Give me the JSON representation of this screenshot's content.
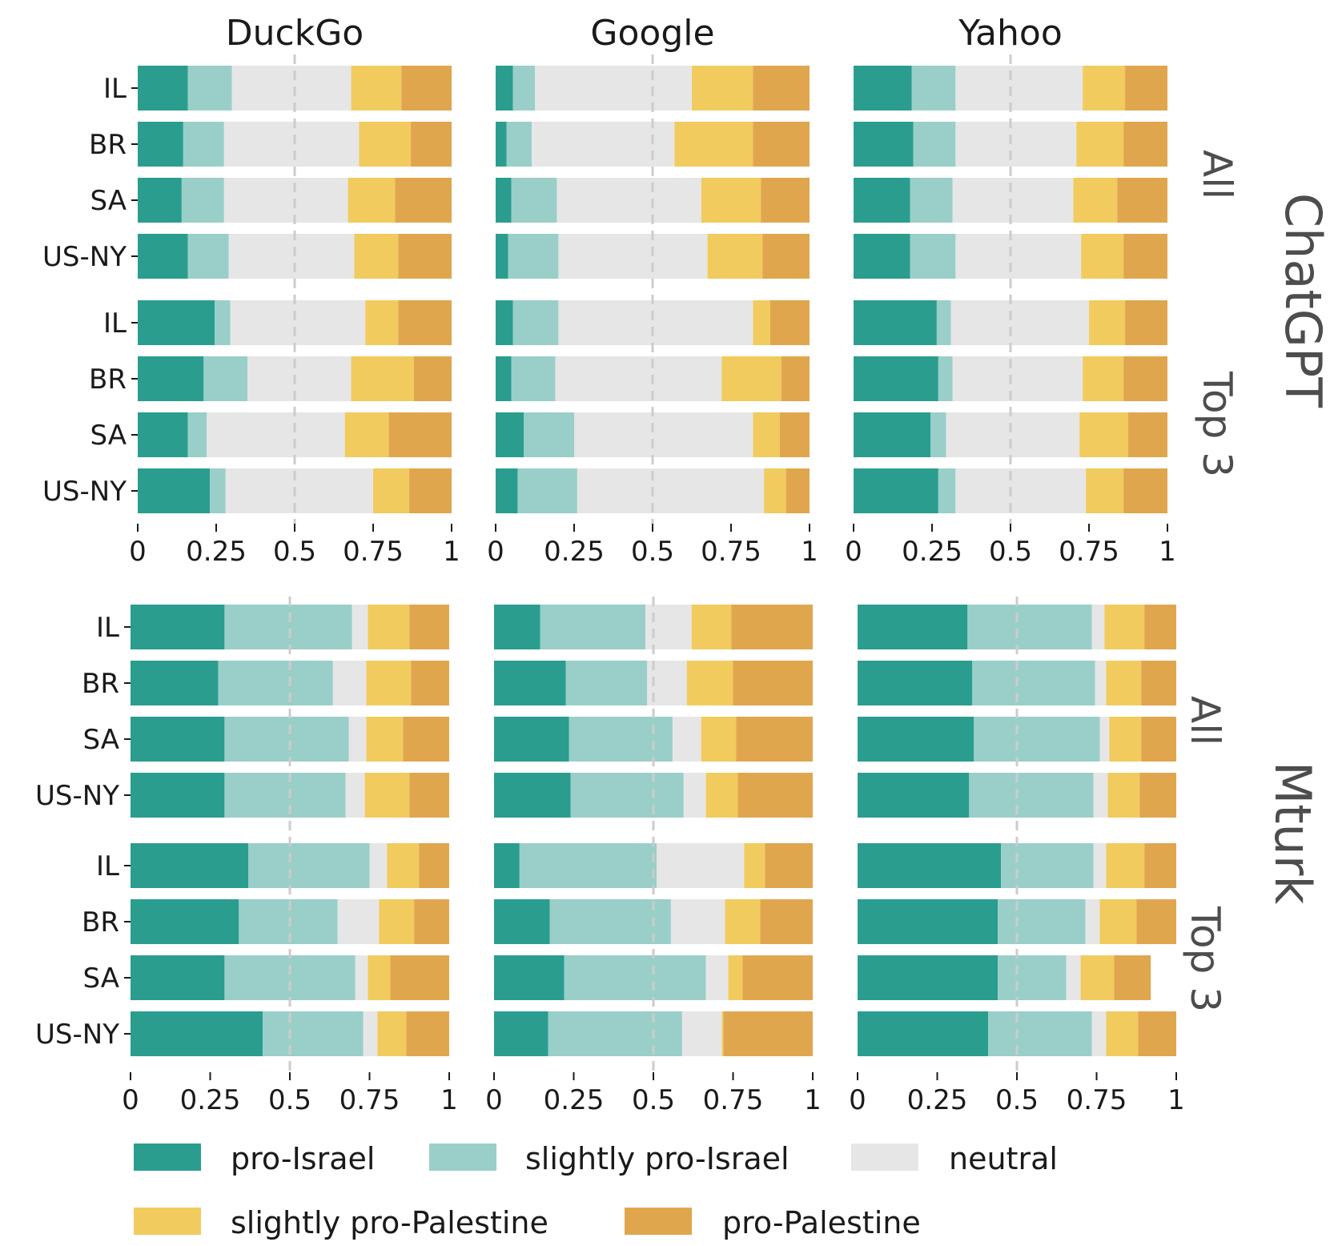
{
  "chart_data": {
    "type": "bar",
    "orientation": "horizontal-stacked",
    "columns": [
      "DuckGo",
      "Google",
      "Yahoo"
    ],
    "row_groups": [
      {
        "name": "ChatGPT",
        "subgroups": [
          "All",
          "Top 3"
        ]
      },
      {
        "name": "Mturk",
        "subgroups": [
          "All",
          "Top 3"
        ]
      }
    ],
    "categories": [
      "IL",
      "BR",
      "SA",
      "US-NY"
    ],
    "x_ticks": [
      "0",
      "0.25",
      "0.5",
      "0.75",
      "1"
    ],
    "xlim": [
      0,
      1
    ],
    "reference_line": 0.5,
    "series": [
      {
        "name": "pro-Israel",
        "color": "#2a9d8f"
      },
      {
        "name": "slightly pro-Israel",
        "color": "#99cfc8"
      },
      {
        "name": "neutral",
        "color": "#e6e6e6"
      },
      {
        "name": "slightly pro-Palestine",
        "color": "#f1cb5e"
      },
      {
        "name": "pro-Palestine",
        "color": "#e0a64e"
      }
    ],
    "panels": [
      {
        "source": "ChatGPT",
        "engine": "DuckGo",
        "subsets": [
          {
            "subset": "All",
            "bars": [
              {
                "label": "IL",
                "values": [
                  0.16,
                  0.14,
                  0.38,
                  0.16,
                  0.16
                ]
              },
              {
                "label": "BR",
                "values": [
                  0.145,
                  0.13,
                  0.43,
                  0.165,
                  0.13
                ]
              },
              {
                "label": "SA",
                "values": [
                  0.14,
                  0.135,
                  0.395,
                  0.15,
                  0.18
                ]
              },
              {
                "label": "US-NY",
                "values": [
                  0.16,
                  0.13,
                  0.4,
                  0.14,
                  0.17
                ]
              }
            ]
          },
          {
            "subset": "Top 3",
            "bars": [
              {
                "label": "IL",
                "values": [
                  0.245,
                  0.05,
                  0.43,
                  0.105,
                  0.17
                ]
              },
              {
                "label": "BR",
                "values": [
                  0.21,
                  0.14,
                  0.33,
                  0.2,
                  0.12
                ]
              },
              {
                "label": "SA",
                "values": [
                  0.16,
                  0.06,
                  0.44,
                  0.14,
                  0.2
                ]
              },
              {
                "label": "US-NY",
                "values": [
                  0.23,
                  0.05,
                  0.47,
                  0.115,
                  0.135
                ]
              }
            ]
          }
        ]
      },
      {
        "source": "ChatGPT",
        "engine": "Google",
        "subsets": [
          {
            "subset": "All",
            "bars": [
              {
                "label": "IL",
                "values": [
                  0.055,
                  0.07,
                  0.5,
                  0.195,
                  0.18
                ]
              },
              {
                "label": "BR",
                "values": [
                  0.035,
                  0.08,
                  0.455,
                  0.25,
                  0.18
                ]
              },
              {
                "label": "SA",
                "values": [
                  0.05,
                  0.145,
                  0.46,
                  0.19,
                  0.155
                ]
              },
              {
                "label": "US-NY",
                "values": [
                  0.04,
                  0.16,
                  0.475,
                  0.175,
                  0.15
                ]
              }
            ]
          },
          {
            "subset": "Top 3",
            "bars": [
              {
                "label": "IL",
                "values": [
                  0.055,
                  0.145,
                  0.62,
                  0.055,
                  0.125
                ]
              },
              {
                "label": "BR",
                "values": [
                  0.05,
                  0.14,
                  0.53,
                  0.19,
                  0.09
                ]
              },
              {
                "label": "SA",
                "values": [
                  0.09,
                  0.16,
                  0.57,
                  0.085,
                  0.095
                ]
              },
              {
                "label": "US-NY",
                "values": [
                  0.07,
                  0.19,
                  0.595,
                  0.07,
                  0.075
                ]
              }
            ]
          }
        ]
      },
      {
        "source": "ChatGPT",
        "engine": "Yahoo",
        "subsets": [
          {
            "subset": "All",
            "bars": [
              {
                "label": "IL",
                "values": [
                  0.185,
                  0.14,
                  0.405,
                  0.135,
                  0.135
                ]
              },
              {
                "label": "BR",
                "values": [
                  0.19,
                  0.135,
                  0.385,
                  0.15,
                  0.14
                ]
              },
              {
                "label": "SA",
                "values": [
                  0.18,
                  0.135,
                  0.385,
                  0.14,
                  0.16
                ]
              },
              {
                "label": "US-NY",
                "values": [
                  0.18,
                  0.145,
                  0.4,
                  0.135,
                  0.14
                ]
              }
            ]
          },
          {
            "subset": "Top 3",
            "bars": [
              {
                "label": "IL",
                "values": [
                  0.265,
                  0.045,
                  0.44,
                  0.115,
                  0.135
                ]
              },
              {
                "label": "BR",
                "values": [
                  0.27,
                  0.045,
                  0.415,
                  0.13,
                  0.14
                ]
              },
              {
                "label": "SA",
                "values": [
                  0.245,
                  0.05,
                  0.425,
                  0.155,
                  0.125
                ]
              },
              {
                "label": "US-NY",
                "values": [
                  0.27,
                  0.055,
                  0.415,
                  0.12,
                  0.14
                ]
              }
            ]
          }
        ]
      },
      {
        "source": "Mturk",
        "engine": "DuckGo",
        "subsets": [
          {
            "subset": "All",
            "bars": [
              {
                "label": "IL",
                "values": [
                  0.295,
                  0.4,
                  0.05,
                  0.13,
                  0.125
                ]
              },
              {
                "label": "BR",
                "values": [
                  0.275,
                  0.36,
                  0.105,
                  0.14,
                  0.12
                ]
              },
              {
                "label": "SA",
                "values": [
                  0.295,
                  0.39,
                  0.055,
                  0.115,
                  0.145
                ]
              },
              {
                "label": "US-NY",
                "values": [
                  0.295,
                  0.38,
                  0.06,
                  0.14,
                  0.125
                ]
              }
            ]
          },
          {
            "subset": "Top 3",
            "bars": [
              {
                "label": "IL",
                "values": [
                  0.37,
                  0.38,
                  0.055,
                  0.1,
                  0.095
                ]
              },
              {
                "label": "BR",
                "values": [
                  0.34,
                  0.31,
                  0.13,
                  0.11,
                  0.11
                ]
              },
              {
                "label": "SA",
                "values": [
                  0.295,
                  0.41,
                  0.04,
                  0.07,
                  0.185
                ]
              },
              {
                "label": "US-NY",
                "values": [
                  0.415,
                  0.315,
                  0.045,
                  0.09,
                  0.135
                ]
              }
            ]
          }
        ]
      },
      {
        "source": "Mturk",
        "engine": "Google",
        "subsets": [
          {
            "subset": "All",
            "bars": [
              {
                "label": "IL",
                "values": [
                  0.145,
                  0.33,
                  0.145,
                  0.125,
                  0.255
                ]
              },
              {
                "label": "BR",
                "values": [
                  0.225,
                  0.255,
                  0.125,
                  0.145,
                  0.25
                ]
              },
              {
                "label": "SA",
                "values": [
                  0.235,
                  0.325,
                  0.09,
                  0.11,
                  0.24
                ]
              },
              {
                "label": "US-NY",
                "values": [
                  0.24,
                  0.355,
                  0.07,
                  0.1,
                  0.235
                ]
              }
            ]
          },
          {
            "subset": "Top 3",
            "bars": [
              {
                "label": "IL",
                "values": [
                  0.08,
                  0.43,
                  0.275,
                  0.065,
                  0.15
                ]
              },
              {
                "label": "BR",
                "values": [
                  0.175,
                  0.38,
                  0.17,
                  0.11,
                  0.165
                ]
              },
              {
                "label": "SA",
                "values": [
                  0.22,
                  0.445,
                  0.07,
                  0.045,
                  0.22
                ]
              },
              {
                "label": "US-NY",
                "values": [
                  0.17,
                  0.42,
                  0.125,
                  0.005,
                  0.28
                ]
              }
            ]
          }
        ]
      },
      {
        "source": "Mturk",
        "engine": "Yahoo",
        "subsets": [
          {
            "subset": "All",
            "bars": [
              {
                "label": "IL",
                "values": [
                  0.345,
                  0.39,
                  0.04,
                  0.125,
                  0.1
                ]
              },
              {
                "label": "BR",
                "values": [
                  0.36,
                  0.385,
                  0.035,
                  0.11,
                  0.11
                ]
              },
              {
                "label": "SA",
                "values": [
                  0.365,
                  0.395,
                  0.03,
                  0.1,
                  0.11
                ]
              },
              {
                "label": "US-NY",
                "values": [
                  0.35,
                  0.39,
                  0.045,
                  0.1,
                  0.115
                ]
              }
            ]
          },
          {
            "subset": "Top 3",
            "bars": [
              {
                "label": "IL",
                "values": [
                  0.45,
                  0.29,
                  0.04,
                  0.12,
                  0.1
                ]
              },
              {
                "label": "BR",
                "values": [
                  0.44,
                  0.275,
                  0.045,
                  0.115,
                  0.125
                ]
              },
              {
                "label": "SA",
                "values": [
                  0.44,
                  0.215,
                  0.045,
                  0.105,
                  0.115
                ]
              },
              {
                "label": "US-NY",
                "values": [
                  0.41,
                  0.325,
                  0.045,
                  0.1,
                  0.12
                ]
              }
            ]
          }
        ]
      }
    ]
  }
}
